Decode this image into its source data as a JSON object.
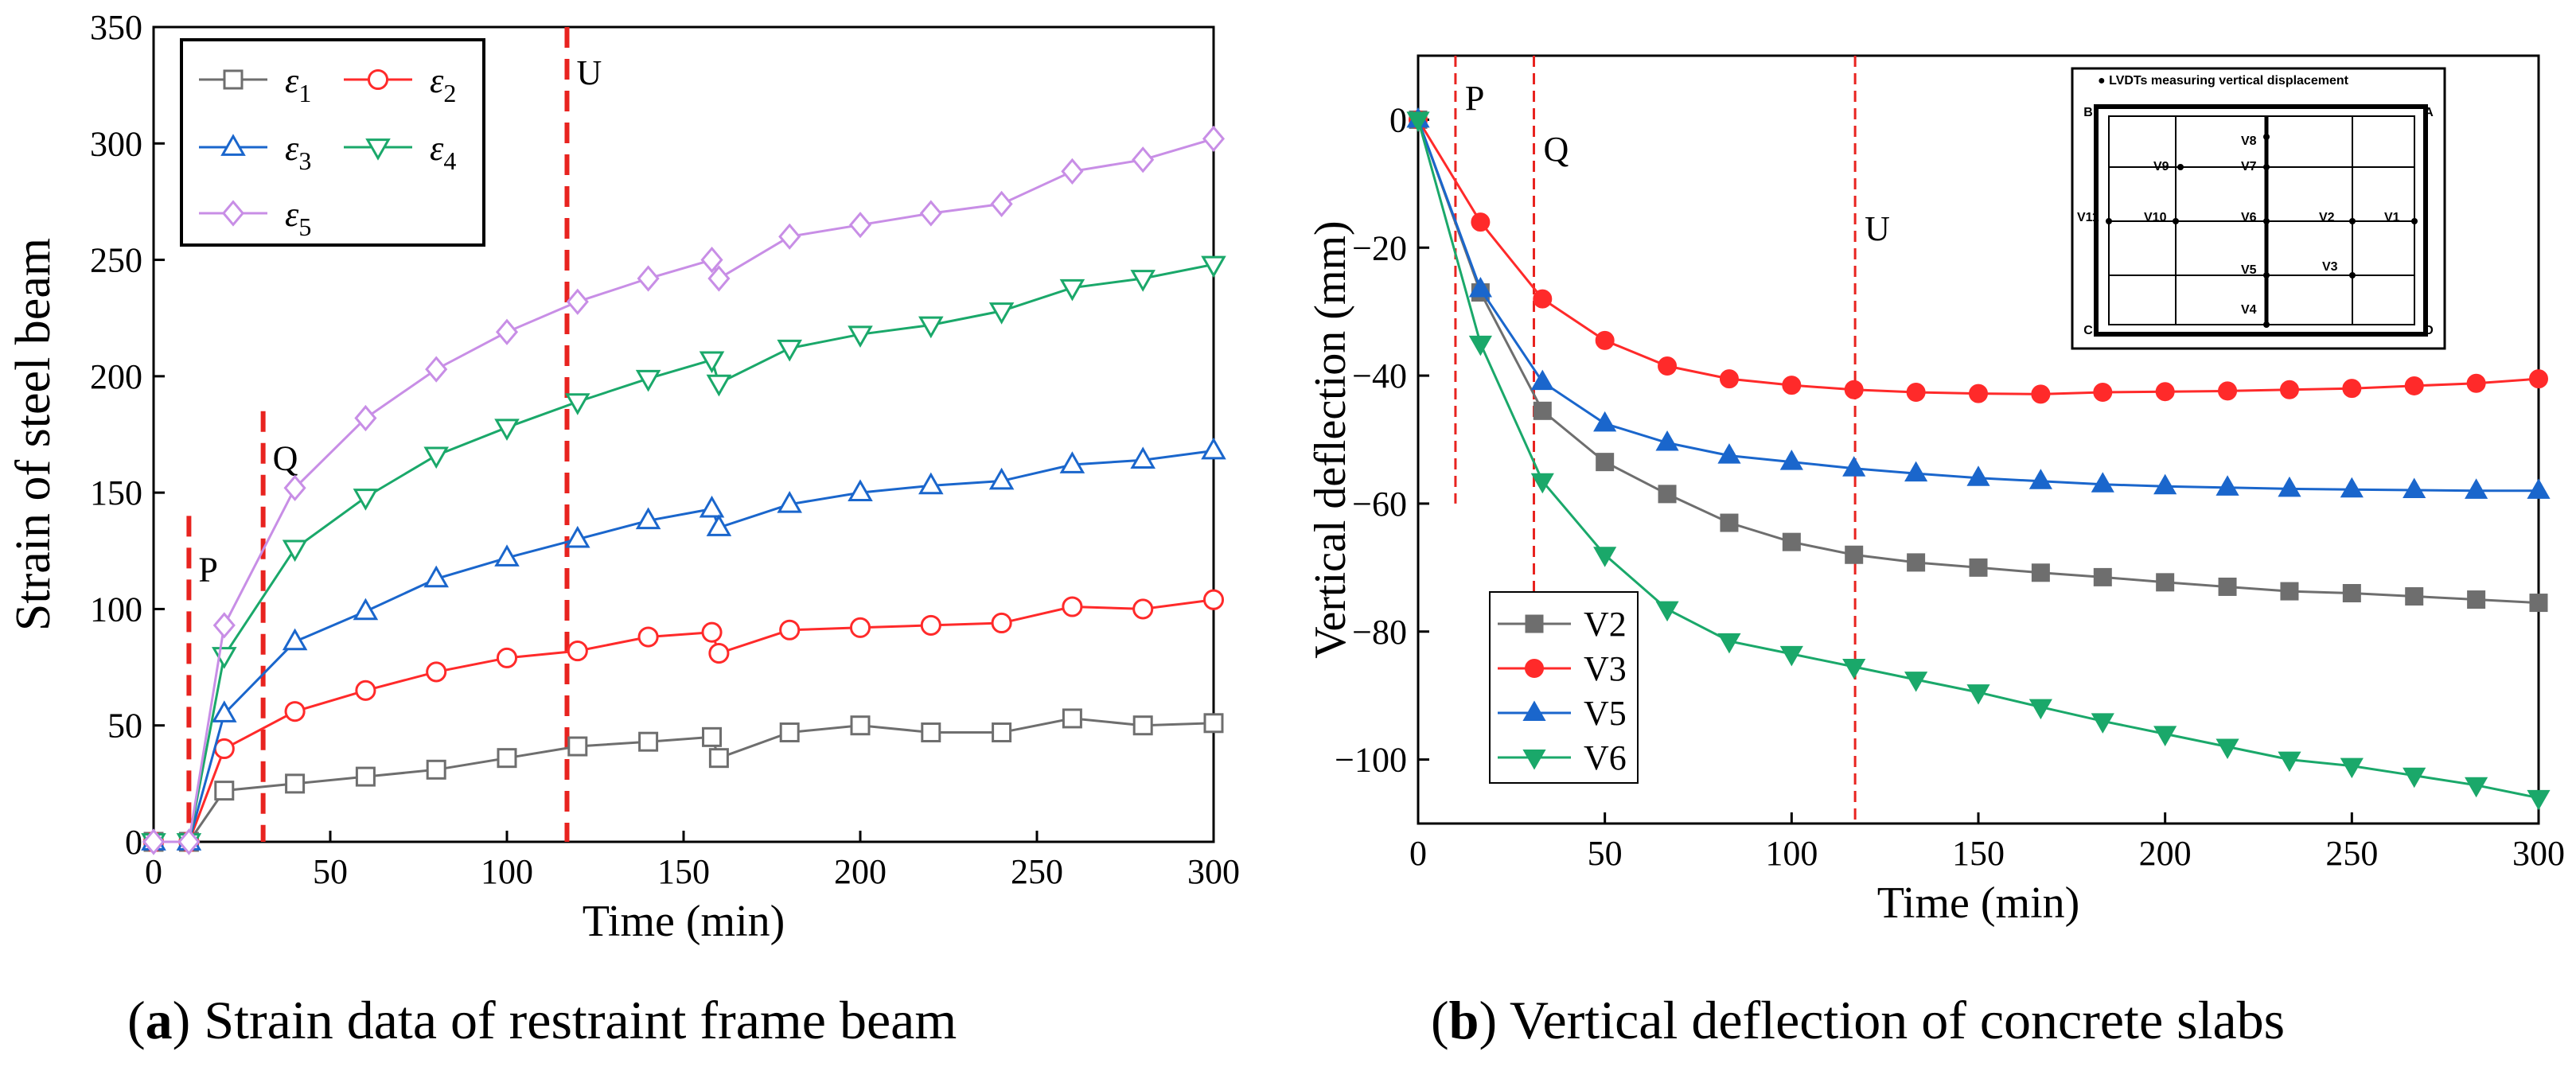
{
  "captions": [
    {
      "letter": "a",
      "text": " Strain data of restraint frame beam"
    },
    {
      "letter": "b",
      "text": " Vertical deflection of concrete slabs"
    }
  ],
  "chart_data": [
    {
      "type": "line",
      "xlabel": "Time (min)",
      "ylabel": "Strain of steel beam",
      "xlim": [
        0,
        300
      ],
      "ylim": [
        0,
        350
      ],
      "xticks": [
        "0",
        "50",
        "100",
        "150",
        "200",
        "250",
        "300"
      ],
      "yticks": [
        "0",
        "50",
        "100",
        "150",
        "200",
        "250",
        "300",
        "350"
      ],
      "legend_position": "top-left",
      "annotations": [
        {
          "label": "P",
          "x": 10,
          "y_top": 140
        },
        {
          "label": "Q",
          "x": 31,
          "y_top": 185
        },
        {
          "label": "U",
          "x": 117,
          "y_top": 350
        }
      ],
      "series": [
        {
          "name": "ε",
          "sub": "1",
          "color": "#6e6e6e",
          "marker": "square",
          "x": [
            0,
            10,
            20,
            40,
            60,
            80,
            100,
            120,
            140,
            158,
            160,
            180,
            200,
            220,
            240,
            260,
            280,
            300
          ],
          "y": [
            0,
            0,
            22,
            25,
            28,
            31,
            36,
            41,
            43,
            45,
            36,
            47,
            50,
            47,
            47,
            53,
            50,
            51
          ]
        },
        {
          "name": "ε",
          "sub": "2",
          "color": "#ff2a2a",
          "marker": "circle",
          "x": [
            0,
            10,
            20,
            40,
            60,
            80,
            100,
            120,
            140,
            158,
            160,
            180,
            200,
            220,
            240,
            260,
            280,
            300
          ],
          "y": [
            0,
            0,
            40,
            56,
            65,
            73,
            79,
            82,
            88,
            90,
            81,
            91,
            92,
            93,
            94,
            101,
            100,
            104
          ]
        },
        {
          "name": "ε",
          "sub": "3",
          "color": "#1a66cc",
          "marker": "triangle-up",
          "x": [
            0,
            10,
            20,
            40,
            60,
            80,
            100,
            120,
            140,
            158,
            160,
            180,
            200,
            220,
            240,
            260,
            280,
            300
          ],
          "y": [
            0,
            0,
            55,
            86,
            99,
            113,
            122,
            130,
            138,
            143,
            135,
            145,
            150,
            153,
            155,
            162,
            164,
            168
          ]
        },
        {
          "name": "ε",
          "sub": "4",
          "color": "#1aa86a",
          "marker": "triangle-down",
          "x": [
            0,
            10,
            20,
            40,
            60,
            80,
            100,
            120,
            140,
            158,
            160,
            180,
            200,
            220,
            240,
            260,
            280,
            300
          ],
          "y": [
            0,
            0,
            80,
            126,
            148,
            166,
            178,
            189,
            199,
            207,
            197,
            212,
            218,
            222,
            228,
            238,
            242,
            248
          ]
        },
        {
          "name": "ε",
          "sub": "5",
          "color": "#c88ee6",
          "marker": "diamond",
          "x": [
            0,
            10,
            20,
            40,
            60,
            80,
            100,
            120,
            140,
            158,
            160,
            180,
            200,
            220,
            240,
            260,
            280,
            300
          ],
          "y": [
            0,
            0,
            93,
            152,
            182,
            203,
            219,
            232,
            242,
            250,
            242,
            260,
            265,
            270,
            274,
            288,
            293,
            302
          ]
        }
      ]
    },
    {
      "type": "line",
      "xlabel": "Time (min)",
      "ylabel": "Vertical deflection (mm)",
      "xlim": [
        0,
        300
      ],
      "ylim": [
        -110,
        10
      ],
      "xticks": [
        "0",
        "50",
        "100",
        "150",
        "200",
        "250",
        "300"
      ],
      "yticks": [
        "0",
        "−20",
        "−40",
        "−60",
        "−80",
        "−100"
      ],
      "legend_position": "bottom-left",
      "annotations": [
        {
          "label": "P",
          "x": 10,
          "y_bottom": -60
        },
        {
          "label": "Q",
          "x": 31,
          "y_bottom": -74
        },
        {
          "label": "U",
          "x": 117,
          "y_bottom": -110
        }
      ],
      "inset": {
        "title": "● LVDTs measuring vertical displacement",
        "corners": [
          "B",
          "A",
          "C",
          "D"
        ],
        "points": [
          "V8",
          "V9",
          "V7",
          "V11",
          "V10",
          "V6",
          "V2",
          "V1",
          "V5",
          "V3",
          "V4"
        ]
      },
      "series": [
        {
          "name": "V2",
          "color": "#6e6e6e",
          "marker": "square",
          "x": [
            0,
            16.7,
            33.3,
            50,
            66.7,
            83.3,
            100,
            116.7,
            133.3,
            150,
            166.7,
            183.3,
            200,
            216.7,
            233.3,
            250,
            266.7,
            283.3,
            300
          ],
          "y": [
            0,
            -27,
            -45.5,
            -53.5,
            -58.5,
            -63,
            -66,
            -68,
            -69.2,
            -70,
            -70.8,
            -71.5,
            -72.3,
            -73,
            -73.7,
            -74,
            -74.5,
            -75,
            -75.5
          ]
        },
        {
          "name": "V3",
          "color": "#ff2a2a",
          "marker": "circle",
          "x": [
            0,
            16.7,
            33.3,
            50,
            66.7,
            83.3,
            100,
            116.7,
            133.3,
            150,
            166.7,
            183.3,
            200,
            216.7,
            233.3,
            250,
            266.7,
            283.3,
            300
          ],
          "y": [
            0,
            -16,
            -28,
            -34.5,
            -38.5,
            -40.5,
            -41.5,
            -42.2,
            -42.6,
            -42.8,
            -42.9,
            -42.6,
            -42.5,
            -42.4,
            -42.2,
            -42,
            -41.6,
            -41.2,
            -40.5
          ]
        },
        {
          "name": "V5",
          "color": "#1a66cc",
          "marker": "triangle-up",
          "x": [
            0,
            16.7,
            33.3,
            50,
            66.7,
            83.3,
            100,
            116.7,
            133.3,
            150,
            166.7,
            183.3,
            200,
            216.7,
            233.3,
            250,
            266.7,
            283.3,
            300
          ],
          "y": [
            0,
            -26.5,
            -41,
            -47.5,
            -50.5,
            -52.5,
            -53.5,
            -54.5,
            -55.3,
            -56,
            -56.5,
            -57,
            -57.3,
            -57.5,
            -57.7,
            -57.8,
            -57.9,
            -58,
            -58
          ]
        },
        {
          "name": "V6",
          "color": "#1aa86a",
          "marker": "triangle-down",
          "x": [
            0,
            16.7,
            33.3,
            50,
            66.7,
            83.3,
            100,
            116.7,
            133.3,
            150,
            166.7,
            183.3,
            200,
            216.7,
            233.3,
            250,
            266.7,
            283.3,
            300
          ],
          "y": [
            0,
            -35,
            -56.5,
            -68,
            -76.5,
            -81.5,
            -83.5,
            -85.5,
            -87.5,
            -89.5,
            -91.8,
            -94,
            -96,
            -98,
            -100,
            -101,
            -102.5,
            -104,
            -106
          ]
        }
      ]
    }
  ]
}
